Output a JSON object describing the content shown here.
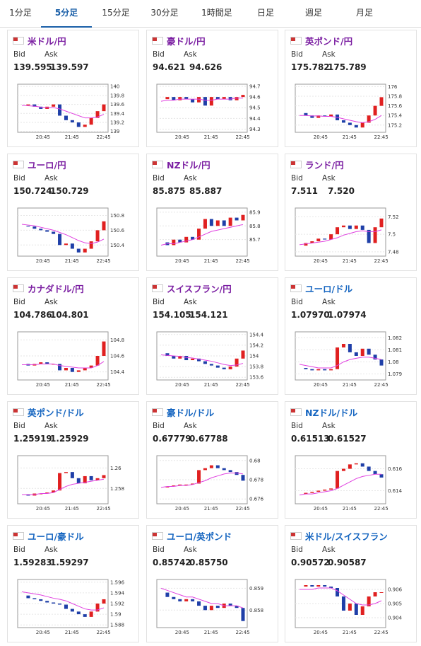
{
  "tabs": [
    "1分足",
    "5分足",
    "15分足",
    "30分足",
    "1時間足",
    "日足",
    "週足",
    "月足"
  ],
  "active_tab": 1,
  "labels": {
    "bid": "Bid",
    "ask": "Ask"
  },
  "time_labels": [
    "20:45",
    "21:45",
    "22:45"
  ],
  "tiles": [
    {
      "name": "米ドル/円",
      "bid": "139.595",
      "ask": "139.597",
      "yticks": [
        139,
        139.2,
        139.4,
        139.6,
        139.8,
        140
      ],
      "ylim": [
        138.98,
        140.05
      ],
      "closes": [
        139.58,
        139.6,
        139.55,
        139.5,
        139.55,
        139.6,
        139.35,
        139.25,
        139.2,
        139.1,
        139.15,
        139.3,
        139.45,
        139.6
      ],
      "ma": [
        139.58,
        139.57,
        139.56,
        139.54,
        139.53,
        139.53,
        139.5,
        139.45,
        139.4,
        139.35,
        139.3,
        139.3,
        139.32,
        139.38
      ]
    },
    {
      "name": "豪ドル/円",
      "bid": "94.621",
      "ask": "94.626",
      "yticks": [
        94.3,
        94.4,
        94.5,
        94.6,
        94.7
      ],
      "ylim": [
        94.27,
        94.72
      ],
      "closes": [
        94.58,
        94.6,
        94.57,
        94.6,
        94.58,
        94.55,
        94.6,
        94.52,
        94.6,
        94.58,
        94.6,
        94.57,
        94.6,
        94.62
      ],
      "ma": [
        94.56,
        94.57,
        94.57,
        94.58,
        94.58,
        94.58,
        94.58,
        94.57,
        94.57,
        94.58,
        94.58,
        94.58,
        94.59,
        94.59
      ]
    },
    {
      "name": "英ポンド/円",
      "bid": "175.782",
      "ask": "175.789",
      "yticks": [
        175.2,
        175.4,
        175.6,
        175.8,
        176
      ],
      "ylim": [
        175.05,
        176.05
      ],
      "closes": [
        175.45,
        175.4,
        175.35,
        175.4,
        175.38,
        175.42,
        175.3,
        175.25,
        175.2,
        175.15,
        175.25,
        175.4,
        175.6,
        175.78
      ],
      "ma": [
        175.4,
        175.4,
        175.39,
        175.39,
        175.38,
        175.38,
        175.36,
        175.33,
        175.3,
        175.27,
        175.25,
        175.27,
        175.32,
        175.4
      ]
    },
    {
      "name": "ユーロ/円",
      "bid": "150.724",
      "ask": "150.729",
      "yticks": [
        150.4,
        150.6,
        150.8
      ],
      "ylim": [
        150.25,
        150.9
      ],
      "closes": [
        150.66,
        150.65,
        150.62,
        150.6,
        150.58,
        150.55,
        150.4,
        150.42,
        150.35,
        150.3,
        150.35,
        150.45,
        150.6,
        150.72
      ],
      "ma": [
        150.68,
        150.67,
        150.66,
        150.64,
        150.62,
        150.6,
        150.57,
        150.54,
        150.5,
        150.46,
        150.43,
        150.42,
        150.44,
        150.48
      ]
    },
    {
      "name": "NZドル/円",
      "bid": "85.875",
      "ask": "85.887",
      "yticks": [
        85.7,
        85.8,
        85.9
      ],
      "ylim": [
        85.58,
        85.93
      ],
      "closes": [
        85.68,
        85.66,
        85.7,
        85.68,
        85.72,
        85.7,
        85.78,
        85.85,
        85.8,
        85.84,
        85.8,
        85.86,
        85.84,
        85.88
      ],
      "ma": [
        85.66,
        85.67,
        85.67,
        85.68,
        85.69,
        85.7,
        85.72,
        85.74,
        85.76,
        85.77,
        85.78,
        85.79,
        85.8,
        85.81
      ]
    },
    {
      "name": "ランド/円",
      "bid": "7.511",
      "ask": "7.520",
      "yticks": [
        7.48,
        7.5,
        7.52
      ],
      "ylim": [
        7.475,
        7.53
      ],
      "closes": [
        7.487,
        7.49,
        7.492,
        7.495,
        7.494,
        7.5,
        7.508,
        7.51,
        7.506,
        7.51,
        7.505,
        7.49,
        7.508,
        7.518
      ],
      "ma": [
        7.488,
        7.489,
        7.49,
        7.491,
        7.492,
        7.494,
        7.496,
        7.499,
        7.501,
        7.503,
        7.504,
        7.503,
        7.503,
        7.505
      ]
    },
    {
      "name": "カナダドル/円",
      "bid": "104.786",
      "ask": "104.801",
      "yticks": [
        104.4,
        104.6,
        104.8
      ],
      "ylim": [
        104.3,
        104.9
      ],
      "closes": [
        104.5,
        104.48,
        104.5,
        104.52,
        104.5,
        104.5,
        104.42,
        104.45,
        104.4,
        104.42,
        104.45,
        104.48,
        104.6,
        104.78
      ],
      "ma": [
        104.49,
        104.49,
        104.49,
        104.5,
        104.5,
        104.5,
        104.48,
        104.47,
        104.46,
        104.45,
        104.45,
        104.45,
        104.48,
        104.53
      ]
    },
    {
      "name": "スイスフラン/円",
      "bid": "154.105",
      "ask": "154.121",
      "yticks": [
        153.6,
        153.8,
        154,
        154.2,
        154.4
      ],
      "ylim": [
        153.55,
        154.45
      ],
      "closes": [
        154.05,
        154.0,
        153.95,
        154.0,
        153.92,
        153.95,
        153.9,
        153.85,
        153.82,
        153.78,
        153.75,
        153.8,
        153.95,
        154.1
      ],
      "ma": [
        154.02,
        154.01,
        154,
        153.99,
        153.97,
        153.96,
        153.94,
        153.92,
        153.9,
        153.87,
        153.84,
        153.82,
        153.83,
        153.86
      ]
    },
    {
      "name": "ユーロ/ドル",
      "bid": "1.07970",
      "ask": "1.07974",
      "yticks": [
        1.079,
        1.08,
        1.081,
        1.082
      ],
      "ylim": [
        1.0785,
        1.0825
      ],
      "closes": [
        1.0795,
        1.0794,
        1.0793,
        1.0794,
        1.0793,
        1.0794,
        1.0812,
        1.0815,
        1.0808,
        1.0805,
        1.0811,
        1.0806,
        1.0802,
        1.0797
      ],
      "ma": [
        1.0798,
        1.0797,
        1.0796,
        1.0795,
        1.0795,
        1.0795,
        1.0797,
        1.08,
        1.0802,
        1.0803,
        1.0804,
        1.0804,
        1.0803,
        1.0802
      ]
    },
    {
      "name": "英ポンド/ドル",
      "bid": "1.25919",
      "ask": "1.25929",
      "yticks": [
        1.258,
        1.26
      ],
      "ylim": [
        1.2565,
        1.2612
      ],
      "closes": [
        1.2574,
        1.2573,
        1.2575,
        1.2575,
        1.2576,
        1.2578,
        1.2595,
        1.2596,
        1.259,
        1.2585,
        1.2592,
        1.2588,
        1.259,
        1.2593
      ],
      "ma": [
        1.2574,
        1.2574,
        1.2574,
        1.2575,
        1.2575,
        1.2576,
        1.2579,
        1.2582,
        1.2584,
        1.2585,
        1.2586,
        1.2587,
        1.2588,
        1.2589
      ]
    },
    {
      "name": "豪ドル/ドル",
      "bid": "0.67779",
      "ask": "0.67788",
      "yticks": [
        0.676,
        0.678,
        0.68
      ],
      "ylim": [
        0.6755,
        0.6805
      ],
      "closes": [
        0.6772,
        0.6773,
        0.6774,
        0.6775,
        0.6775,
        0.6776,
        0.679,
        0.6792,
        0.6795,
        0.6792,
        0.679,
        0.6788,
        0.6785,
        0.6779
      ],
      "ma": [
        0.6772,
        0.6773,
        0.6773,
        0.6774,
        0.6774,
        0.6775,
        0.6777,
        0.6779,
        0.6782,
        0.6784,
        0.6786,
        0.6787,
        0.6787,
        0.6786
      ]
    },
    {
      "name": "NZドル/ドル",
      "bid": "0.61513",
      "ask": "0.61527",
      "yticks": [
        0.614,
        0.616
      ],
      "ylim": [
        0.6128,
        0.6172
      ],
      "closes": [
        0.6137,
        0.6138,
        0.6139,
        0.614,
        0.6141,
        0.6142,
        0.6158,
        0.616,
        0.6164,
        0.6165,
        0.6162,
        0.6158,
        0.6155,
        0.6152
      ],
      "ma": [
        0.6136,
        0.6137,
        0.6137,
        0.6138,
        0.6139,
        0.614,
        0.6142,
        0.6145,
        0.6148,
        0.6151,
        0.6153,
        0.6154,
        0.6155,
        0.6155
      ]
    },
    {
      "name": "ユーロ/豪ドル",
      "bid": "1.59283",
      "ask": "1.59297",
      "yticks": [
        1.588,
        1.59,
        1.592,
        1.594,
        1.596
      ],
      "ylim": [
        1.5875,
        1.5965
      ],
      "closes": [
        1.5935,
        1.593,
        1.5928,
        1.5925,
        1.5922,
        1.592,
        1.5918,
        1.591,
        1.5905,
        1.59,
        1.5895,
        1.5905,
        1.592,
        1.5928
      ],
      "ma": [
        1.5942,
        1.594,
        1.5938,
        1.5936,
        1.5933,
        1.593,
        1.5928,
        1.5925,
        1.592,
        1.5915,
        1.591,
        1.5908,
        1.5908,
        1.5912
      ]
    },
    {
      "name": "ユーロ/英ポンド",
      "bid": "0.85742",
      "ask": "0.85750",
      "yticks": [
        0.858,
        0.859
      ],
      "ylim": [
        0.8572,
        0.8594
      ],
      "closes": [
        0.8588,
        0.8586,
        0.8585,
        0.8584,
        0.8585,
        0.8584,
        0.8582,
        0.858,
        0.8582,
        0.8581,
        0.8583,
        0.8582,
        0.8581,
        0.8575
      ],
      "ma": [
        0.859,
        0.8589,
        0.8588,
        0.8587,
        0.8586,
        0.8586,
        0.8585,
        0.8584,
        0.8583,
        0.8583,
        0.8582,
        0.8582,
        0.8582,
        0.8581
      ]
    },
    {
      "name": "米ドル/スイスフラン",
      "bid": "0.90572",
      "ask": "0.90587",
      "yticks": [
        0.904,
        0.905,
        0.906
      ],
      "ylim": [
        0.9033,
        0.9067
      ],
      "closes": [
        0.9062,
        0.9063,
        0.9062,
        0.9063,
        0.9062,
        0.9061,
        0.9055,
        0.9045,
        0.905,
        0.9042,
        0.9048,
        0.9055,
        0.9058,
        0.9058
      ],
      "ma": [
        0.906,
        0.906,
        0.906,
        0.9061,
        0.9061,
        0.9061,
        0.9059,
        0.9056,
        0.9053,
        0.905,
        0.9049,
        0.9049,
        0.905,
        0.9052
      ]
    }
  ]
}
